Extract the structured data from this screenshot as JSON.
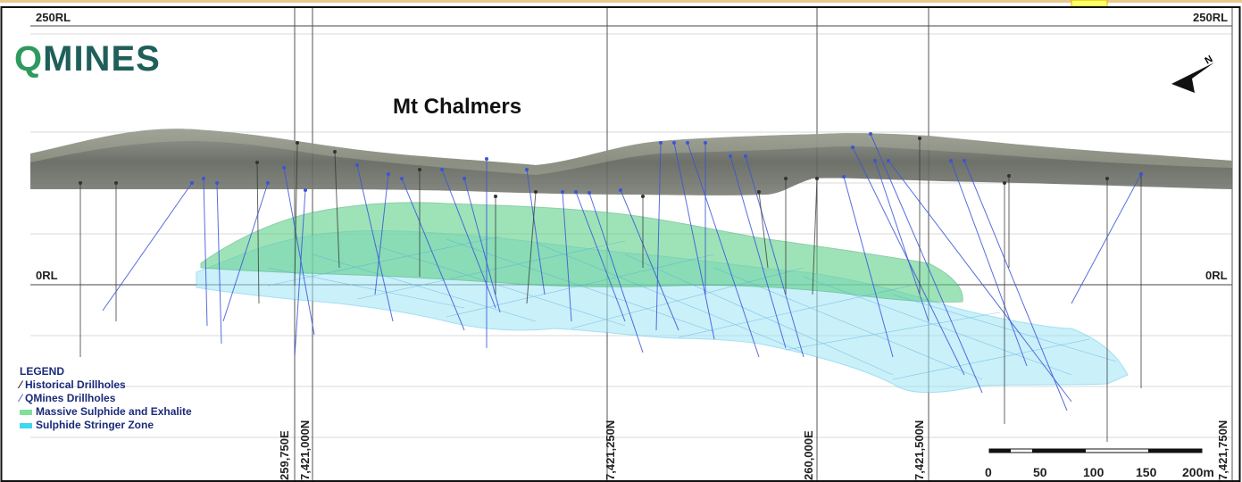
{
  "logo": {
    "q": "Q",
    "rest": "MINES"
  },
  "title": "Mt Chalmers",
  "levels": {
    "top_left": "250RL",
    "top_right": "250RL",
    "mid_left": "0RL",
    "mid_right": "0RL"
  },
  "grid_labels": [
    "259,750E",
    "7,421,000N",
    "7,421,250N",
    "260,000E",
    "7,421,500N",
    "7,421,750N"
  ],
  "legend": {
    "title": "LEGEND",
    "items": [
      {
        "label": "Historical Drillholes",
        "color": "#222222",
        "type": "line"
      },
      {
        "label": "QMines Drillholes",
        "color": "#5566dd",
        "type": "line"
      },
      {
        "label": "Massive Sulphide and Exhalite",
        "color": "#7fe09a",
        "type": "fill"
      },
      {
        "label": "Sulphide Stringer Zone",
        "color": "#3ed8f0",
        "type": "fill"
      }
    ]
  },
  "scale_bar": {
    "ticks": [
      "0",
      "50",
      "100",
      "150",
      "200m"
    ]
  },
  "colors": {
    "terrain": "#6b6f66",
    "massive": "#5fd08a",
    "stringer": "#7ad6f2",
    "qmines_hole": "#3a55d8",
    "historical_hole": "#333333"
  }
}
